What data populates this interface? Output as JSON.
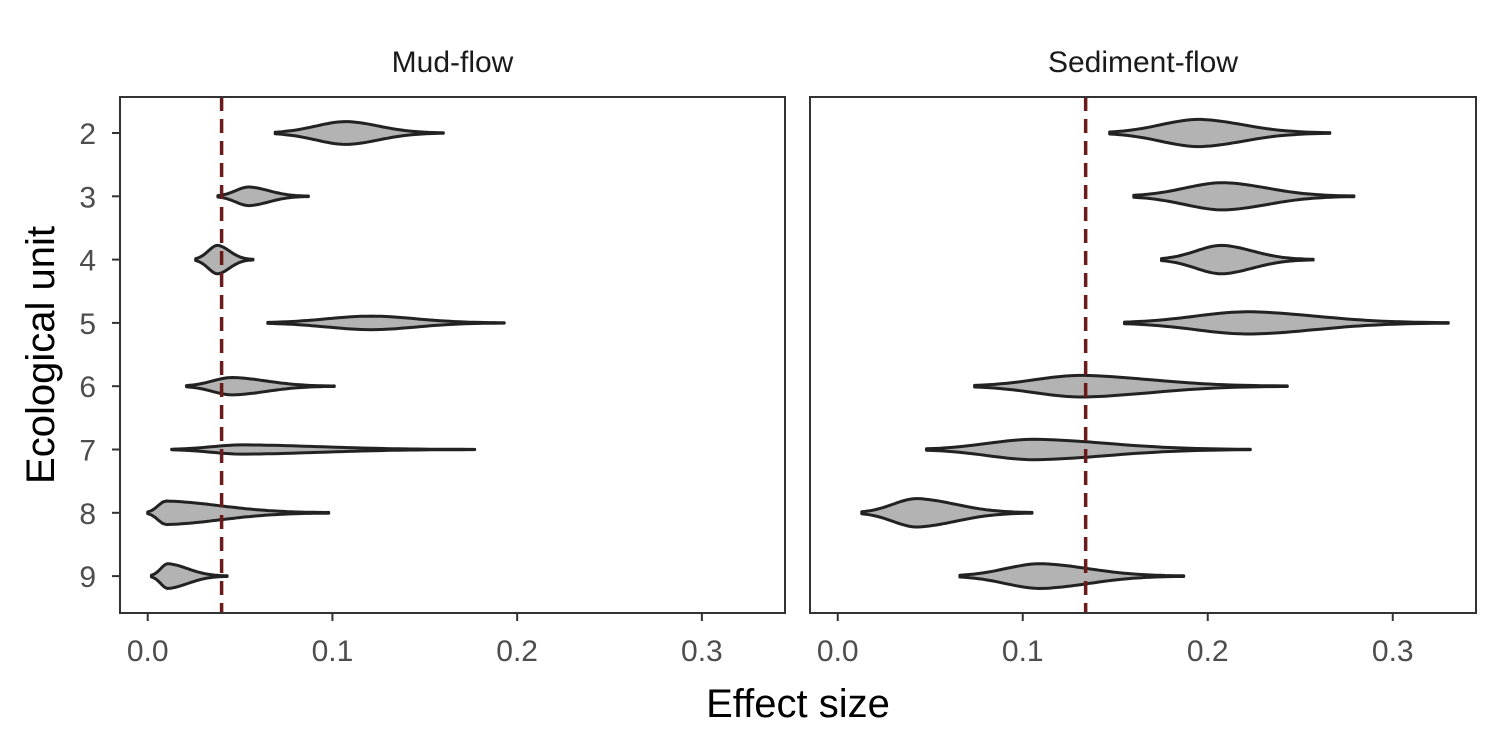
{
  "chart_data": {
    "type": "violin",
    "xlabel": "Effect size",
    "ylabel": "Ecological unit",
    "xlim": [
      -0.015,
      0.345
    ],
    "x_ticks": [
      "0.0",
      "0.1",
      "0.2",
      "0.3"
    ],
    "y_categories": [
      "2",
      "3",
      "4",
      "5",
      "6",
      "7",
      "8",
      "9"
    ],
    "colors": {
      "violin_fill": "#b3b3b3",
      "violin_stroke": "#222222",
      "reference_line": "#6b1a1a"
    },
    "panels": [
      {
        "title": "Mud-flow",
        "reference_line": 0.04,
        "violins": [
          {
            "unit": "2",
            "min": 0.069,
            "peak": 0.108,
            "max": 0.16,
            "height": 0.37
          },
          {
            "unit": "3",
            "min": 0.038,
            "peak": 0.055,
            "max": 0.087,
            "height": 0.3
          },
          {
            "unit": "4",
            "min": 0.026,
            "peak": 0.038,
            "max": 0.057,
            "height": 0.46
          },
          {
            "unit": "5",
            "min": 0.065,
            "peak": 0.122,
            "max": 0.193,
            "height": 0.22
          },
          {
            "unit": "6",
            "min": 0.021,
            "peak": 0.046,
            "max": 0.101,
            "height": 0.28
          },
          {
            "unit": "7",
            "min": 0.013,
            "peak": 0.052,
            "max": 0.177,
            "height": 0.15
          },
          {
            "unit": "8",
            "min": 0.0,
            "peak": 0.01,
            "max": 0.098,
            "height": 0.38
          },
          {
            "unit": "9",
            "min": 0.002,
            "peak": 0.011,
            "max": 0.043,
            "height": 0.4
          }
        ]
      },
      {
        "title": "Sediment-flow",
        "reference_line": 0.134,
        "violins": [
          {
            "unit": "2",
            "min": 0.147,
            "peak": 0.196,
            "max": 0.266,
            "height": 0.44
          },
          {
            "unit": "3",
            "min": 0.16,
            "peak": 0.209,
            "max": 0.279,
            "height": 0.44
          },
          {
            "unit": "4",
            "min": 0.175,
            "peak": 0.208,
            "max": 0.257,
            "height": 0.46
          },
          {
            "unit": "5",
            "min": 0.155,
            "peak": 0.223,
            "max": 0.33,
            "height": 0.36
          },
          {
            "unit": "6",
            "min": 0.074,
            "peak": 0.132,
            "max": 0.243,
            "height": 0.35
          },
          {
            "unit": "7",
            "min": 0.048,
            "peak": 0.107,
            "max": 0.223,
            "height": 0.33
          },
          {
            "unit": "8",
            "min": 0.013,
            "peak": 0.043,
            "max": 0.105,
            "height": 0.46
          },
          {
            "unit": "9",
            "min": 0.066,
            "peak": 0.11,
            "max": 0.187,
            "height": 0.4
          }
        ]
      }
    ]
  }
}
